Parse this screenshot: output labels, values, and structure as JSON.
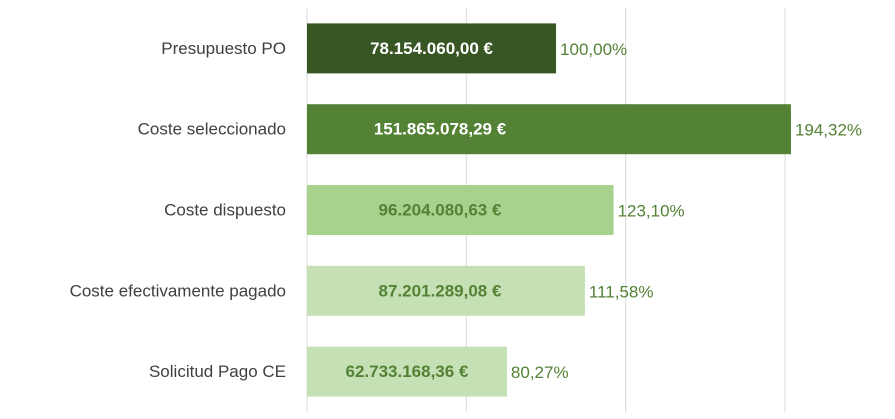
{
  "chart_data": {
    "type": "bar",
    "orientation": "horizontal",
    "categories": [
      "Presupuesto PO",
      "Coste seleccionado",
      "Coste dispuesto",
      "Coste efectivamente pagado",
      "Solicitud Pago CE"
    ],
    "values": [
      78154060.0,
      151865078.29,
      96204080.63,
      87201289.08,
      62733168.36
    ],
    "value_labels": [
      "78.154.060,00 €",
      "151.865.078,29 €",
      "96.204.080,63 €",
      "87.201.289,08 €",
      "62.733.168,36 €"
    ],
    "colors": [
      "#375623",
      "#548235",
      "#a9d18e",
      "#c5e0b4",
      "#c5e0b4"
    ],
    "label_colors": [
      "#ffffff",
      "#ffffff",
      "#548235",
      "#548235",
      "#548235"
    ],
    "percent": {
      "color": "#548235",
      "values": [
        100.0,
        194.32,
        123.1,
        111.58,
        80.27
      ],
      "value_labels": [
        "100,00%",
        "194,32%",
        "123,10%",
        "111,58%",
        "80,27%"
      ]
    },
    "xlim": [
      0,
      150000000
    ],
    "xticks": [
      0,
      50000000,
      100000000,
      150000000
    ],
    "grid": true
  }
}
